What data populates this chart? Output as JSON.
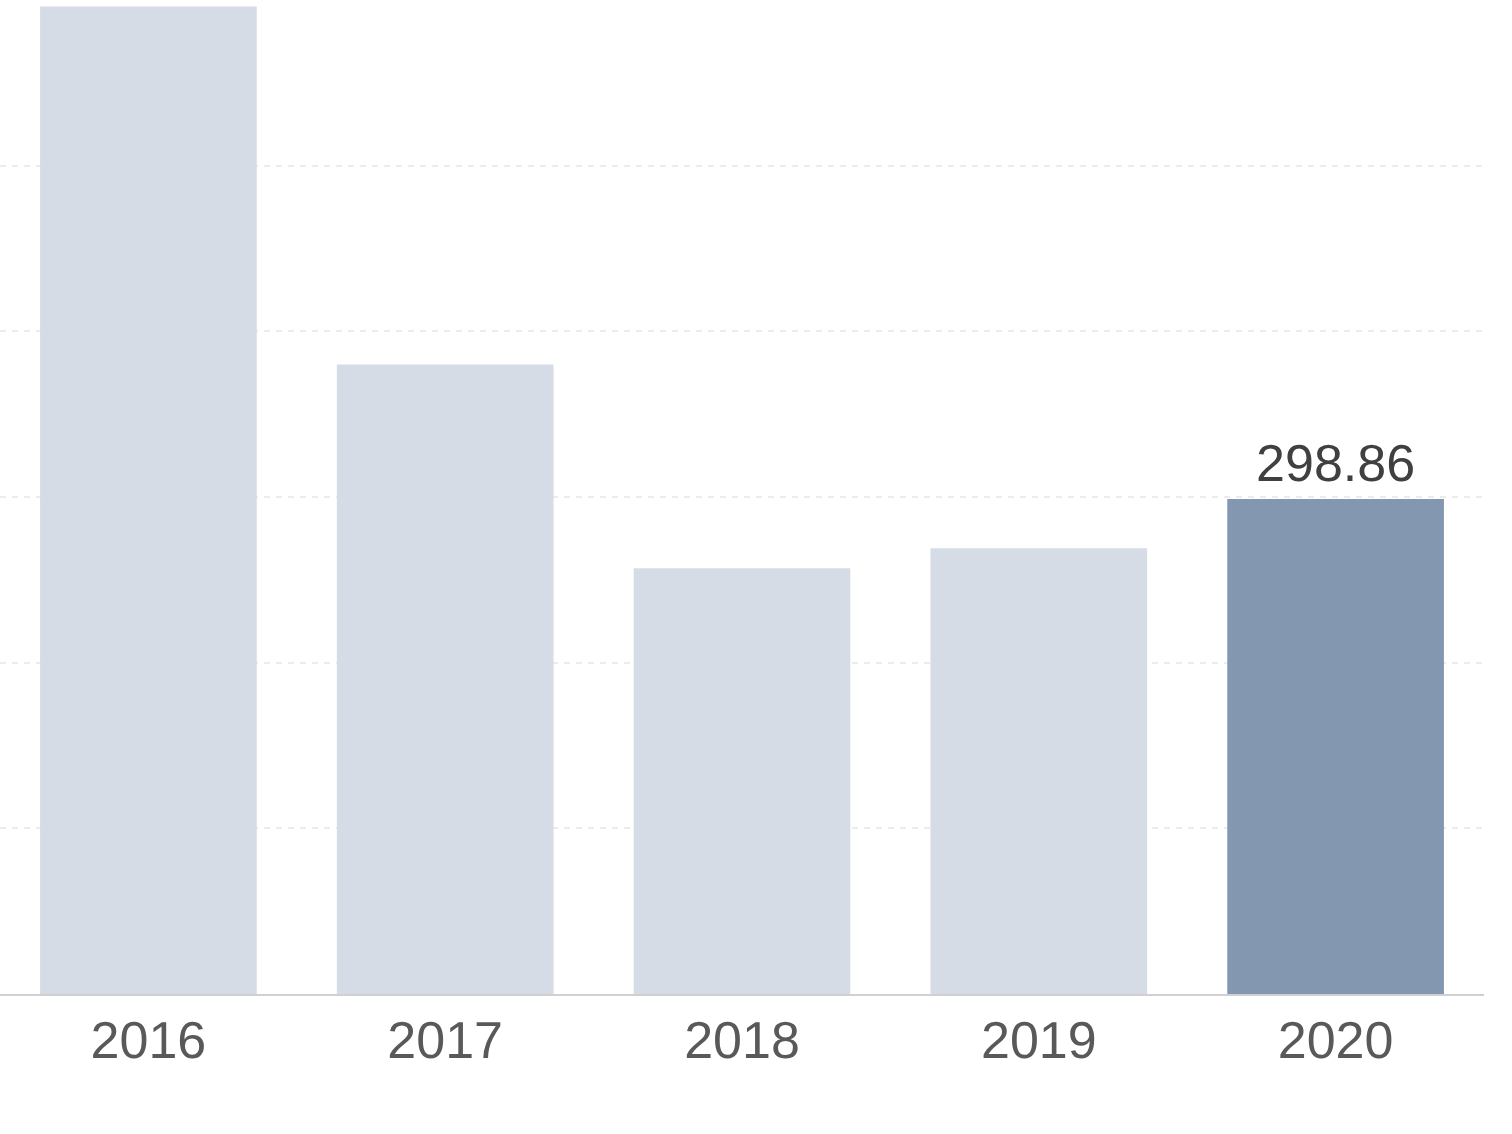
{
  "chart_data": {
    "type": "bar",
    "categories": [
      "2016",
      "2017",
      "2018",
      "2019",
      "2020"
    ],
    "values": [
      596,
      380,
      257,
      269,
      298.86
    ],
    "colors": [
      "#d5dce6",
      "#d5dce6",
      "#d5dce6",
      "#d5dce6",
      "#8497b0"
    ],
    "value_labels": [
      null,
      null,
      null,
      null,
      "298.86"
    ],
    "ylim": [
      0,
      600
    ],
    "yticks": [
      {
        "value": 0,
        "label": null
      },
      {
        "value": 100,
        "label": null
      },
      {
        "value": 200,
        "label": null
      },
      {
        "value": 300,
        "label": null
      },
      {
        "value": 400,
        "label": null
      },
      {
        "value": 500,
        "label": null
      }
    ],
    "grid": "y",
    "tick_labels": "x"
  }
}
